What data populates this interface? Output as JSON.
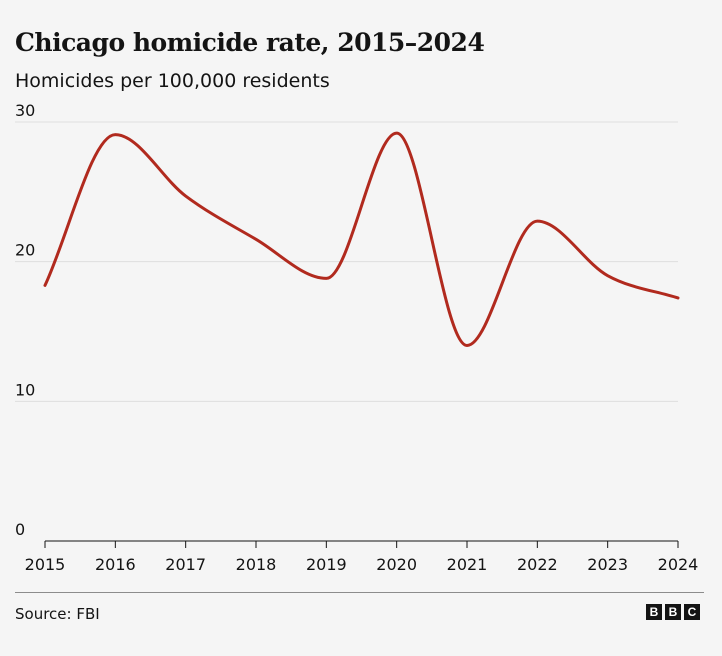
{
  "chart_data": {
    "type": "line",
    "title": "Chicago homicide rate, 2015–2024",
    "subtitle": "Homicides per 100,000 residents",
    "xlabel": "",
    "ylabel": "",
    "x": [
      "2015",
      "2016",
      "2017",
      "2018",
      "2019",
      "2020",
      "2021",
      "2022",
      "2023",
      "2024"
    ],
    "series": [
      {
        "values": [
          18.3,
          29.1,
          24.7,
          21.6,
          18.8,
          29.2,
          14.0,
          22.9,
          19.0,
          17.4
        ],
        "color": "#b12a1e"
      }
    ],
    "ylim": [
      0,
      30
    ],
    "yticks": [
      "0",
      "10",
      "20",
      "30"
    ],
    "grid": true,
    "legend": "none",
    "source": "Source: FBI",
    "logo_letters": [
      "B",
      "B",
      "C"
    ]
  }
}
